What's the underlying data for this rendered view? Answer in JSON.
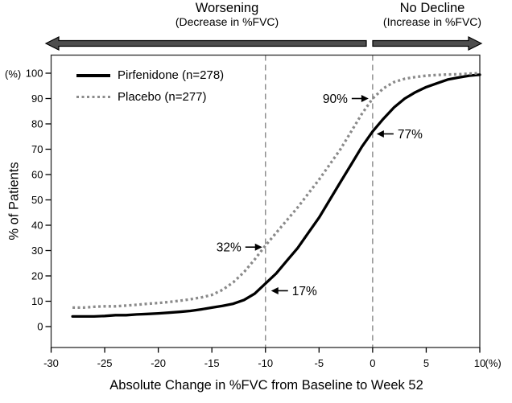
{
  "header": {
    "worsening_title": "Worsening",
    "worsening_subtitle": "(Decrease in %FVC)",
    "no_decline_title": "No Decline",
    "no_decline_subtitle": "(Increase in %FVC)"
  },
  "legend": {
    "items": [
      {
        "label": "Pirfenidone (n=278)",
        "style": "solid",
        "color": "#000000"
      },
      {
        "label": "Placebo (n=277)",
        "style": "dotted",
        "color": "#8a8a8a"
      }
    ]
  },
  "chart_data": {
    "type": "line",
    "subtype": "cumulative-distribution",
    "xlabel": "Absolute Change in %FVC from Baseline to Week 52",
    "ylabel": "% of Patients",
    "x_unit": "(%)",
    "y_unit": "(%)",
    "xlim": [
      -30,
      10
    ],
    "ylim": [
      0,
      100
    ],
    "x_ticks": [
      -30,
      -25,
      -20,
      -15,
      -10,
      -5,
      0,
      5,
      10
    ],
    "y_ticks": [
      0,
      10,
      20,
      30,
      40,
      50,
      60,
      70,
      80,
      90,
      100
    ],
    "grid": false,
    "legend_position": "top-left-inside",
    "reference_lines_x": [
      -10,
      0
    ],
    "series": [
      {
        "name": "Pirfenidone (n=278)",
        "color": "#000000",
        "style": "solid",
        "x": [
          -28,
          -27,
          -26,
          -25,
          -24,
          -23,
          -22,
          -21,
          -20,
          -19,
          -18,
          -17,
          -16,
          -15,
          -14,
          -13,
          -12,
          -11,
          -10,
          -9,
          -8,
          -7,
          -6,
          -5,
          -4,
          -3,
          -2,
          -1,
          0,
          1,
          2,
          3,
          4,
          5,
          6,
          7,
          8,
          9,
          10
        ],
        "y": [
          4,
          4,
          4,
          4.2,
          4.5,
          4.5,
          4.8,
          5,
          5.2,
          5.5,
          5.8,
          6.2,
          6.8,
          7.5,
          8.2,
          9,
          10.5,
          13,
          17,
          21,
          26,
          31,
          37,
          43,
          50,
          57,
          64,
          71,
          77,
          82,
          86.5,
          90,
          92.5,
          94.5,
          96,
          97.5,
          98.3,
          99,
          99.4
        ]
      },
      {
        "name": "Placebo (n=277)",
        "color": "#8a8a8a",
        "style": "dotted",
        "x": [
          -28,
          -27,
          -26,
          -25,
          -24,
          -23,
          -22,
          -21,
          -20,
          -19,
          -18,
          -17,
          -16,
          -15,
          -14,
          -13,
          -12,
          -11,
          -10,
          -9,
          -8,
          -7,
          -6,
          -5,
          -4,
          -3,
          -2,
          -1,
          0,
          1,
          2,
          3,
          4,
          5,
          6,
          7,
          8,
          9,
          10
        ],
        "y": [
          7.5,
          7.5,
          7.8,
          8,
          8,
          8.3,
          8.6,
          9,
          9.3,
          9.7,
          10.2,
          10.8,
          11.5,
          12.5,
          14.5,
          17.5,
          21.5,
          26.5,
          32,
          37,
          42,
          47,
          52.5,
          58,
          64,
          70,
          77,
          84,
          90,
          94,
          96.5,
          97.8,
          98.5,
          99,
          99.3,
          99.5,
          99.6,
          99.8,
          100
        ]
      }
    ],
    "annotations": [
      {
        "label": "90%",
        "series": "Placebo (n=277)",
        "x": 0,
        "y": 90,
        "arrow": "right"
      },
      {
        "label": "77%",
        "series": "Pirfenidone (n=278)",
        "x": 0,
        "y": 77,
        "arrow": "left"
      },
      {
        "label": "32%",
        "series": "Placebo (n=277)",
        "x": -10,
        "y": 32,
        "arrow": "right"
      },
      {
        "label": "17%",
        "series": "Pirfenidone (n=278)",
        "x": -10,
        "y": 17,
        "arrow": "left"
      }
    ],
    "colors": {
      "axis": "#2b2b2b",
      "reference_line": "#8f8f8f",
      "direction_arrow_fill": "#4d4d4d",
      "direction_arrow_stroke": "#000000"
    }
  }
}
